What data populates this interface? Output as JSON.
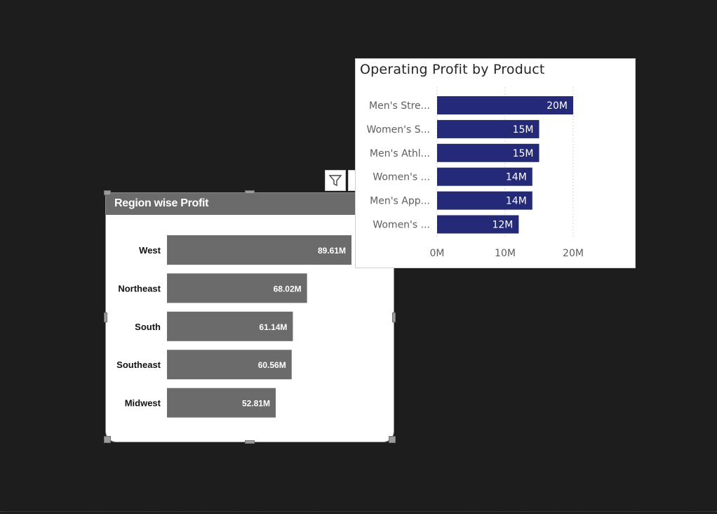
{
  "region_visual": {
    "title": "Region wise Profit"
  },
  "product_visual": {
    "title": "Operating Profit by Product"
  },
  "icons": {
    "filter": "filter-icon",
    "focus": "focus-mode-icon"
  },
  "colors": {
    "canvas": "#1d1d1d",
    "region_bar": "#6b6b6b",
    "product_bar": "#252a78",
    "axis_text": "#605e5c"
  },
  "chart_data": [
    {
      "type": "bar",
      "orientation": "horizontal",
      "title": "Region wise Profit",
      "categories": [
        "West",
        "Northeast",
        "South",
        "Southeast",
        "Midwest"
      ],
      "values": [
        89.61,
        68.02,
        61.14,
        60.56,
        52.81
      ],
      "data_labels": [
        "89.61M",
        "68.02M",
        "61.14M",
        "60.56M",
        "52.81M"
      ],
      "unit": "M",
      "xlim": [
        0,
        89.61
      ],
      "grid": false,
      "legend": "none"
    },
    {
      "type": "bar",
      "orientation": "horizontal",
      "title": "Operating Profit by Product",
      "categories": [
        "Men's Stre...",
        "Women's S...",
        "Men's Athl...",
        "Women's ...",
        "Men's App...",
        "Women's ..."
      ],
      "values": [
        20,
        15,
        15,
        14,
        14,
        12
      ],
      "data_labels": [
        "20M",
        "15M",
        "15M",
        "14M",
        "14M",
        "12M"
      ],
      "x_ticks": [
        "0M",
        "10M",
        "20M"
      ],
      "x_tick_values": [
        0,
        10,
        20
      ],
      "xlim": [
        0,
        20
      ],
      "grid": true,
      "legend": "none"
    }
  ]
}
